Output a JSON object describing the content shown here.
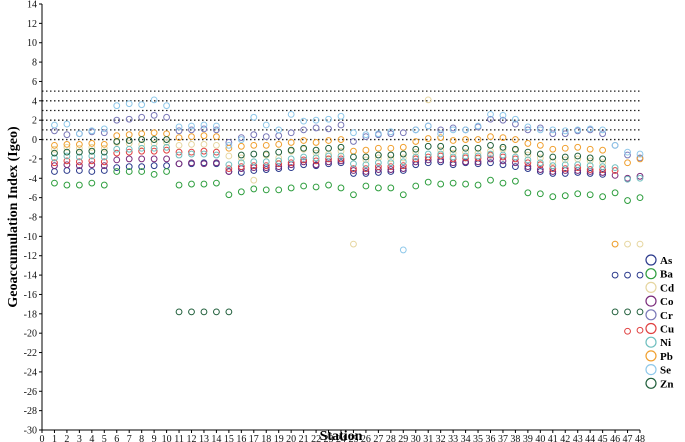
{
  "chart_data": {
    "type": "scatter",
    "xlabel": "Station",
    "ylabel": "Geoaccumulation Index (Igeo)",
    "xlim": [
      0,
      48
    ],
    "ylim": [
      -30,
      14
    ],
    "x_ticks": [
      0,
      1,
      2,
      3,
      4,
      5,
      6,
      7,
      8,
      9,
      10,
      11,
      12,
      13,
      14,
      15,
      16,
      17,
      18,
      19,
      20,
      21,
      22,
      23,
      24,
      25,
      26,
      27,
      28,
      29,
      30,
      31,
      32,
      33,
      34,
      35,
      36,
      37,
      38,
      39,
      40,
      41,
      42,
      43,
      44,
      45,
      46,
      47,
      48
    ],
    "y_ticks": [
      14,
      12,
      10,
      8,
      6,
      4,
      2,
      0,
      -2,
      -4,
      -6,
      -8,
      -10,
      -12,
      -14,
      -16,
      -18,
      -20,
      -22,
      -24,
      -26,
      -28,
      -30
    ],
    "reference_lines": [
      0,
      1,
      2,
      3,
      4,
      5
    ],
    "grid": false,
    "legend_position": "right",
    "marker": "open-circle",
    "series": [
      {
        "name": "As",
        "color": "#2b3a8c",
        "x": [
          1,
          2,
          3,
          4,
          5,
          6,
          7,
          8,
          9,
          10,
          11,
          12,
          13,
          14,
          15,
          16,
          17,
          18,
          19,
          20,
          21,
          22,
          23,
          24,
          25,
          26,
          27,
          28,
          29,
          30,
          31,
          32,
          33,
          34,
          35,
          36,
          37,
          38,
          39,
          40,
          41,
          42,
          43,
          44,
          45,
          46,
          47,
          48
        ],
        "y": [
          -3.3,
          -3.2,
          -3.2,
          -3.3,
          -3.2,
          -2.9,
          -2.8,
          -2.8,
          -2.7,
          -2.7,
          -2.5,
          -2.5,
          -2.4,
          -2.5,
          -3.3,
          -3.4,
          -3.2,
          -3.1,
          -3.0,
          -2.9,
          -2.6,
          -2.7,
          -2.5,
          -2.4,
          -3.5,
          -3.5,
          -3.4,
          -3.3,
          -3.2,
          -2.6,
          -2.4,
          -2.3,
          -2.6,
          -2.4,
          -2.5,
          -2.4,
          -2.6,
          -2.8,
          -3.0,
          -3.3,
          -3.5,
          -3.5,
          -3.4,
          -3.5,
          -3.6,
          -14.0,
          -14.0,
          -14.0
        ]
      },
      {
        "name": "Ba",
        "color": "#2e9e3e",
        "x": [
          1,
          2,
          3,
          4,
          5,
          6,
          7,
          8,
          9,
          10,
          11,
          12,
          13,
          14,
          15,
          16,
          17,
          18,
          19,
          20,
          21,
          22,
          23,
          24,
          25,
          26,
          27,
          28,
          29,
          30,
          31,
          32,
          33,
          34,
          35,
          36,
          37,
          38,
          39,
          40,
          41,
          42,
          43,
          44,
          45,
          46,
          47,
          48
        ],
        "y": [
          -4.5,
          -4.7,
          -4.7,
          -4.5,
          -4.7,
          -3.3,
          -3.3,
          -3.3,
          -3.6,
          -3.3,
          -4.7,
          -4.6,
          -4.6,
          -4.5,
          -5.7,
          -5.4,
          -5.1,
          -5.2,
          -5.2,
          -5.0,
          -4.8,
          -4.9,
          -4.7,
          -5.0,
          -5.7,
          -4.8,
          -5.0,
          -5.0,
          -5.7,
          -4.8,
          -4.4,
          -4.6,
          -4.5,
          -4.6,
          -4.7,
          -4.2,
          -4.5,
          -4.3,
          -5.5,
          -5.6,
          -5.9,
          -5.8,
          -5.6,
          -5.7,
          -5.9,
          -5.5,
          -6.3,
          -6.0
        ]
      },
      {
        "name": "Cd",
        "color": "#e6d6a0",
        "x": [
          1,
          2,
          3,
          4,
          5,
          6,
          7,
          8,
          9,
          10,
          11,
          12,
          13,
          14,
          15,
          16,
          17,
          18,
          19,
          20,
          21,
          22,
          23,
          24,
          25,
          26,
          27,
          28,
          29,
          30,
          31,
          32,
          33,
          34,
          35,
          36,
          37,
          38,
          39,
          40,
          41,
          42,
          43,
          44,
          45,
          46,
          47,
          48
        ],
        "y": [
          -1.0,
          -0.8,
          -0.9,
          -0.8,
          -0.9,
          -0.3,
          -0.4,
          -0.5,
          -0.4,
          -0.3,
          -0.6,
          -0.5,
          -0.5,
          -0.6,
          -1.7,
          -1.9,
          -4.2,
          -1.6,
          -1.9,
          -1.2,
          -1.0,
          -1.4,
          -1.5,
          -1.2,
          -10.8,
          -2.1,
          -1.9,
          -2.0,
          -1.9,
          -1.3,
          4.1,
          -1.1,
          -1.4,
          -1.3,
          -1.4,
          -1.2,
          -1.0,
          -1.1,
          -1.6,
          -1.9,
          -2.3,
          -2.1,
          -2.0,
          -2.2,
          -2.4,
          -10.8,
          -10.8,
          -10.8
        ]
      },
      {
        "name": "Co",
        "color": "#7a2a7a",
        "x": [
          1,
          2,
          3,
          4,
          5,
          6,
          7,
          8,
          9,
          10,
          11,
          12,
          13,
          14,
          15,
          16,
          17,
          18,
          19,
          20,
          21,
          22,
          23,
          24,
          25,
          26,
          27,
          28,
          29,
          30,
          31,
          32,
          33,
          34,
          35,
          36,
          37,
          38,
          39,
          40,
          41,
          42,
          43,
          44,
          45,
          46,
          47,
          48
        ],
        "y": [
          -2.7,
          -2.6,
          -2.7,
          -2.6,
          -2.7,
          -2.1,
          -2.0,
          -2.0,
          -2.0,
          -2.0,
          -2.5,
          -2.4,
          -2.5,
          -2.4,
          -3.3,
          -3.0,
          -2.9,
          -2.9,
          -2.8,
          -2.6,
          -2.3,
          -2.6,
          -2.3,
          -2.2,
          -3.2,
          -3.3,
          -3.1,
          -3.1,
          -3.0,
          -2.3,
          -2.1,
          -2.1,
          -2.4,
          -2.3,
          -2.3,
          -2.0,
          -2.2,
          -2.4,
          -2.8,
          -3.1,
          -3.3,
          -3.2,
          -3.2,
          -3.3,
          -3.4,
          -3.7,
          -4.0,
          -3.8
        ]
      },
      {
        "name": "Cr",
        "color": "#7a78b8",
        "x": [
          1,
          2,
          3,
          4,
          5,
          6,
          7,
          8,
          9,
          10,
          11,
          12,
          13,
          14,
          15,
          16,
          17,
          18,
          19,
          20,
          21,
          22,
          23,
          24,
          25,
          26,
          27,
          28,
          29,
          30,
          31,
          32,
          33,
          34,
          35,
          36,
          37,
          38,
          39,
          40,
          41,
          42,
          43,
          44,
          45,
          46,
          47,
          48
        ],
        "y": [
          0.9,
          0.5,
          0.6,
          0.8,
          0.7,
          2.0,
          2.1,
          2.3,
          2.5,
          2.3,
          0.9,
          1.0,
          1.1,
          1.0,
          -0.3,
          0.2,
          0.5,
          0.3,
          0.4,
          0.7,
          1.0,
          1.2,
          1.1,
          1.5,
          -0.2,
          0.3,
          0.5,
          0.6,
          0.7,
          1.0,
          1.4,
          1.0,
          1.2,
          1.0,
          1.3,
          2.1,
          2.0,
          1.6,
          1.0,
          1.2,
          0.6,
          0.6,
          0.9,
          1.0,
          0.6,
          -0.6,
          -1.6,
          -1.9
        ]
      },
      {
        "name": "Cu",
        "color": "#e04040",
        "x": [
          1,
          2,
          3,
          4,
          5,
          6,
          7,
          8,
          9,
          10,
          11,
          12,
          13,
          14,
          15,
          16,
          17,
          18,
          19,
          20,
          21,
          22,
          23,
          24,
          25,
          26,
          27,
          28,
          29,
          30,
          31,
          32,
          33,
          34,
          35,
          36,
          37,
          38,
          39,
          40,
          41,
          42,
          43,
          44,
          45,
          46,
          47,
          48
        ],
        "y": [
          -2.4,
          -2.2,
          -2.3,
          -2.2,
          -2.3,
          -1.4,
          -1.3,
          -1.2,
          -1.2,
          -1.1,
          -1.3,
          -1.3,
          -1.2,
          -1.3,
          -3.0,
          -2.8,
          -2.7,
          -2.7,
          -2.5,
          -2.4,
          -2.1,
          -2.2,
          -2.0,
          -2.0,
          -3.0,
          -3.0,
          -2.8,
          -2.8,
          -2.7,
          -2.0,
          -1.8,
          -1.7,
          -2.0,
          -1.9,
          -1.9,
          -1.6,
          -1.8,
          -2.0,
          -2.4,
          -2.6,
          -3.0,
          -3.0,
          -2.9,
          -3.1,
          -3.1,
          -3.2,
          -19.8,
          -19.7
        ]
      },
      {
        "name": "Ni",
        "color": "#6fbfbf",
        "x": [
          1,
          2,
          3,
          4,
          5,
          6,
          7,
          8,
          9,
          10,
          11,
          12,
          13,
          14,
          15,
          16,
          17,
          18,
          19,
          20,
          21,
          22,
          23,
          24,
          25,
          26,
          27,
          28,
          29,
          30,
          31,
          32,
          33,
          34,
          35,
          36,
          37,
          38,
          39,
          40,
          41,
          42,
          43,
          44,
          45,
          46,
          47,
          48
        ],
        "y": [
          -1.9,
          -1.7,
          -1.8,
          -1.7,
          -1.8,
          -1.0,
          -1.0,
          -0.9,
          -0.9,
          -0.8,
          -1.6,
          -1.5,
          -1.5,
          -1.6,
          -2.6,
          -2.4,
          -2.3,
          -2.3,
          -2.2,
          -2.0,
          -1.8,
          -1.9,
          -1.7,
          -1.7,
          -2.5,
          -2.6,
          -2.4,
          -2.4,
          -2.3,
          -1.8,
          -1.5,
          -1.5,
          -1.8,
          -1.7,
          -1.7,
          -1.5,
          -1.6,
          -1.8,
          -2.1,
          -2.4,
          -2.7,
          -2.6,
          -2.6,
          -2.7,
          -2.8,
          -2.9,
          -4.1,
          -4.0
        ]
      },
      {
        "name": "Pb",
        "color": "#f0a030",
        "x": [
          1,
          2,
          3,
          4,
          5,
          6,
          7,
          8,
          9,
          10,
          11,
          12,
          13,
          14,
          15,
          16,
          17,
          18,
          19,
          20,
          21,
          22,
          23,
          24,
          25,
          26,
          27,
          28,
          29,
          30,
          31,
          32,
          33,
          34,
          35,
          36,
          37,
          38,
          39,
          40,
          41,
          42,
          43,
          44,
          45,
          46,
          47,
          48
        ],
        "y": [
          -0.6,
          -0.5,
          -0.5,
          -0.4,
          -0.5,
          0.4,
          0.5,
          0.6,
          0.7,
          0.6,
          0.2,
          0.3,
          0.4,
          0.3,
          -0.9,
          -0.7,
          -0.6,
          -0.6,
          -0.5,
          -0.3,
          -0.1,
          -0.3,
          -0.1,
          0.0,
          -1.2,
          -1.1,
          -0.9,
          -0.9,
          -0.8,
          -0.2,
          0.1,
          0.2,
          -0.1,
          0.0,
          0.0,
          0.3,
          0.2,
          0.0,
          -0.4,
          -0.6,
          -1.0,
          -0.9,
          -0.8,
          -1.0,
          -1.1,
          -10.8,
          -2.4,
          -2.0
        ]
      },
      {
        "name": "Se",
        "color": "#8ec8ea",
        "x": [
          1,
          2,
          3,
          4,
          5,
          6,
          7,
          8,
          9,
          10,
          11,
          12,
          13,
          14,
          15,
          16,
          17,
          18,
          19,
          20,
          21,
          22,
          23,
          24,
          25,
          26,
          27,
          28,
          29,
          30,
          31,
          32,
          33,
          34,
          35,
          36,
          37,
          38,
          39,
          40,
          41,
          42,
          43,
          44,
          45,
          46,
          47,
          48
        ],
        "y": [
          1.5,
          1.6,
          0.6,
          0.9,
          1.1,
          3.5,
          3.7,
          3.6,
          4.1,
          3.5,
          1.3,
          1.4,
          1.5,
          1.4,
          -0.6,
          0.0,
          2.3,
          1.5,
          1.0,
          2.6,
          1.9,
          2.0,
          2.1,
          2.4,
          0.7,
          0.5,
          0.6,
          0.8,
          -11.4,
          1.0,
          1.4,
          0.6,
          1.0,
          1.0,
          1.4,
          2.6,
          2.5,
          2.1,
          1.3,
          1.0,
          1.0,
          0.9,
          1.0,
          1.1,
          1.0,
          -0.6,
          -1.3,
          -1.5
        ]
      },
      {
        "name": "Zn",
        "color": "#1f5e3a",
        "x": [
          1,
          2,
          3,
          4,
          5,
          6,
          7,
          8,
          9,
          10,
          11,
          12,
          13,
          14,
          15,
          16,
          17,
          18,
          19,
          20,
          21,
          22,
          23,
          24,
          25,
          26,
          27,
          28,
          29,
          30,
          31,
          32,
          33,
          34,
          35,
          36,
          37,
          38,
          39,
          40,
          41,
          42,
          43,
          44,
          45,
          46,
          47,
          48
        ],
        "y": [
          -1.4,
          -1.3,
          -1.3,
          -1.2,
          -1.3,
          -0.2,
          -0.1,
          0.0,
          0.0,
          0.0,
          -17.8,
          -17.8,
          -17.8,
          -17.8,
          -17.8,
          -1.6,
          -1.5,
          -1.5,
          -1.3,
          -1.1,
          -0.9,
          -1.1,
          -0.9,
          -0.8,
          -1.8,
          -1.8,
          -1.6,
          -1.6,
          -1.5,
          -1.0,
          -0.7,
          -0.7,
          -1.0,
          -0.9,
          -0.9,
          -0.6,
          -0.8,
          -1.0,
          -1.3,
          -1.5,
          -1.8,
          -1.8,
          -1.7,
          -1.9,
          -2.0,
          -17.8,
          -17.8,
          -17.8
        ]
      }
    ]
  }
}
